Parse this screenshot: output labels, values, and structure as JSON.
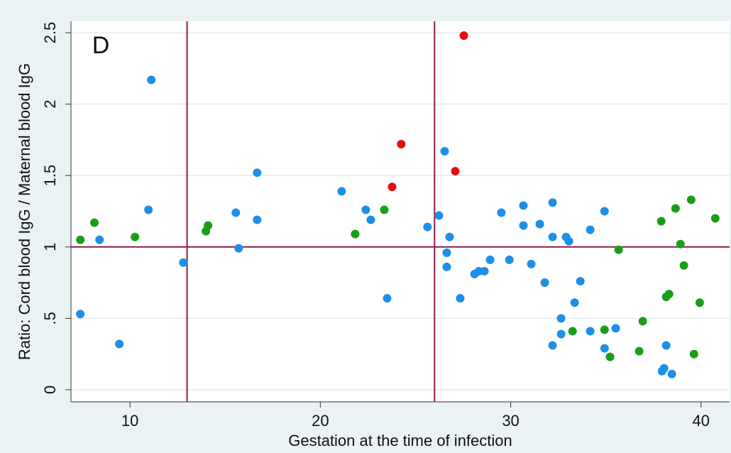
{
  "chart_data": {
    "type": "scatter",
    "annotation": "D",
    "xlabel": "Gestation at the time of infection",
    "ylabel": "Ratio: Cord blood IgG / Maternal blood IgG",
    "xlim": [
      6.9,
      41.5
    ],
    "ylim": [
      -0.085,
      2.58
    ],
    "xticks": [
      10,
      20,
      30,
      40
    ],
    "yticks": [
      0,
      {
        "value": 0.5,
        "label": ".5"
      },
      1,
      1.5,
      2,
      2.5
    ],
    "grid": true,
    "vlines": [
      13,
      26
    ],
    "hlines": [
      1
    ],
    "refline_color": "#8b1a4a",
    "series": [
      {
        "color": "#1e8fe6",
        "x": [
          7.39,
          8.4,
          9.44,
          10.97,
          11.12,
          12.8,
          15.56,
          15.71,
          16.68,
          16.68,
          21.12,
          22.39,
          22.65,
          23.51,
          25.63,
          26.23,
          26.53,
          26.64,
          26.64,
          26.79,
          27.35,
          28.1,
          28.32,
          28.62,
          28.92,
          29.51,
          29.93,
          30.67,
          30.67,
          31.08,
          31.53,
          31.79,
          32.2,
          32.2,
          32.2,
          32.65,
          32.65,
          32.91,
          33.06,
          33.36,
          33.66,
          34.18,
          34.18,
          34.93,
          34.93,
          35.52,
          38.06,
          37.95,
          38.17,
          38.47
        ],
        "values": [
          0.53,
          1.05,
          0.32,
          1.26,
          2.17,
          0.89,
          1.24,
          0.99,
          1.19,
          1.52,
          1.39,
          1.26,
          1.19,
          0.64,
          1.14,
          1.22,
          1.67,
          0.96,
          0.86,
          1.07,
          0.64,
          0.81,
          0.83,
          0.83,
          0.91,
          1.24,
          0.91,
          1.29,
          1.15,
          0.88,
          1.16,
          0.75,
          1.31,
          1.07,
          0.31,
          0.5,
          0.39,
          1.07,
          1.04,
          0.61,
          0.76,
          1.12,
          0.41,
          1.25,
          0.29,
          0.43,
          0.15,
          0.13,
          0.31,
          0.11
        ]
      },
      {
        "color": "#1a9e1a",
        "x": [
          7.39,
          8.13,
          10.26,
          13.99,
          14.1,
          21.83,
          23.36,
          33.25,
          34.93,
          35.22,
          35.67,
          36.75,
          36.94,
          37.91,
          38.17,
          38.32,
          38.66,
          38.92,
          39.1,
          39.48,
          39.63,
          39.93,
          40.75
        ],
        "values": [
          1.05,
          1.17,
          1.07,
          1.11,
          1.15,
          1.09,
          1.26,
          0.41,
          0.42,
          0.23,
          0.98,
          0.27,
          0.48,
          1.18,
          0.65,
          0.67,
          1.27,
          1.02,
          0.87,
          1.33,
          0.25,
          0.61,
          1.2
        ]
      },
      {
        "color": "#e01010",
        "x": [
          23.77,
          24.25,
          27.09,
          27.54
        ],
        "values": [
          1.42,
          1.72,
          1.53,
          2.48
        ]
      }
    ]
  }
}
